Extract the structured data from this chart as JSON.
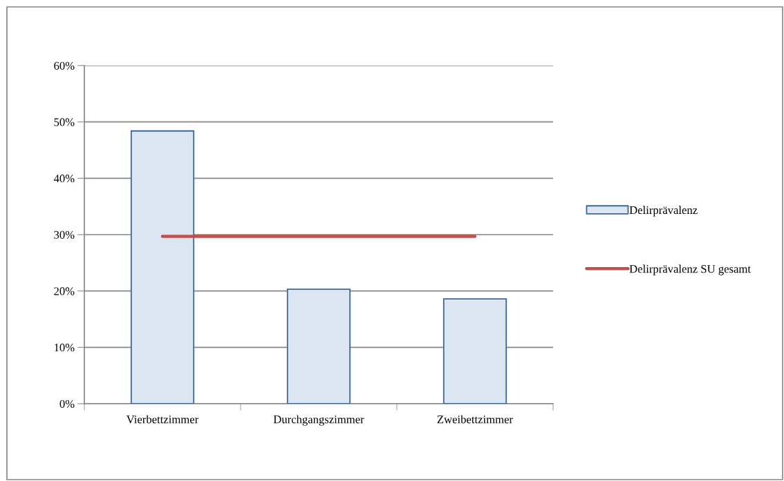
{
  "chart_data": {
    "type": "bar",
    "categories": [
      "Vierbettzimmer",
      "Durchgangszimmer",
      "Zweibettzimmer"
    ],
    "series": [
      {
        "name": "Delirprävalenz",
        "color": "#dce6f2",
        "values": [
          48.4,
          20.3,
          18.6
        ]
      },
      {
        "name": "Delirprävalenz SU gesamt",
        "type": "line",
        "color": "#c0504d",
        "values": [
          29.7,
          29.7,
          29.7
        ]
      }
    ],
    "ylim": [
      0,
      60
    ],
    "yticks": [
      {
        "value": 0,
        "label": "0%"
      },
      {
        "value": 10,
        "label": "10%"
      },
      {
        "value": 20,
        "label": "20%"
      },
      {
        "value": 30,
        "label": "30%"
      },
      {
        "value": 40,
        "label": "40%"
      },
      {
        "value": 50,
        "label": "50%"
      },
      {
        "value": 60,
        "label": "60%"
      }
    ],
    "grid": "y",
    "legend": "right",
    "marker": "none",
    "line_style": "solid"
  }
}
